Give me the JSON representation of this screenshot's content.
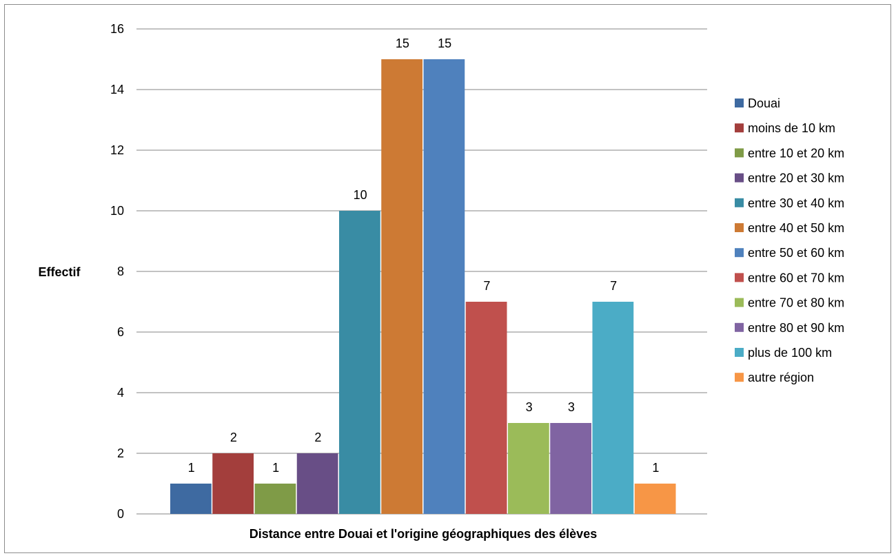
{
  "chart_data": {
    "type": "bar",
    "xlabel": "Distance entre Douai et l'origine géographiques des élèves",
    "ylabel": "Effectif",
    "ylim": [
      0,
      16
    ],
    "yticks": [
      0,
      2,
      4,
      6,
      8,
      10,
      12,
      14,
      16
    ],
    "grid": true,
    "legend_position": "right",
    "series": [
      {
        "name": "Douai",
        "values": [
          1
        ],
        "color": "#3E6AA1"
      },
      {
        "name": "moins de 10 km",
        "values": [
          2
        ],
        "color": "#A33E3C"
      },
      {
        "name": "entre 10 et 20 km",
        "values": [
          1
        ],
        "color": "#7F9B47"
      },
      {
        "name": "entre 20 et 30 km",
        "values": [
          2
        ],
        "color": "#684E86"
      },
      {
        "name": "entre 30 et 40 km",
        "values": [
          10
        ],
        "color": "#398CA4"
      },
      {
        "name": "entre 40 et 50 km",
        "values": [
          15
        ],
        "color": "#CD7A34"
      },
      {
        "name": "entre 50 et 60 km",
        "values": [
          15
        ],
        "color": "#4F81BD"
      },
      {
        "name": "entre 60 et 70 km",
        "values": [
          7
        ],
        "color": "#C0504D"
      },
      {
        "name": "entre 70 et 80 km",
        "values": [
          3
        ],
        "color": "#9BBB59"
      },
      {
        "name": "entre 80 et 90 km",
        "values": [
          3
        ],
        "color": "#8064A2"
      },
      {
        "name": "plus de 100 km",
        "values": [
          7
        ],
        "color": "#4BACC6"
      },
      {
        "name": "autre région",
        "values": [
          1
        ],
        "color": "#F79646"
      }
    ]
  }
}
